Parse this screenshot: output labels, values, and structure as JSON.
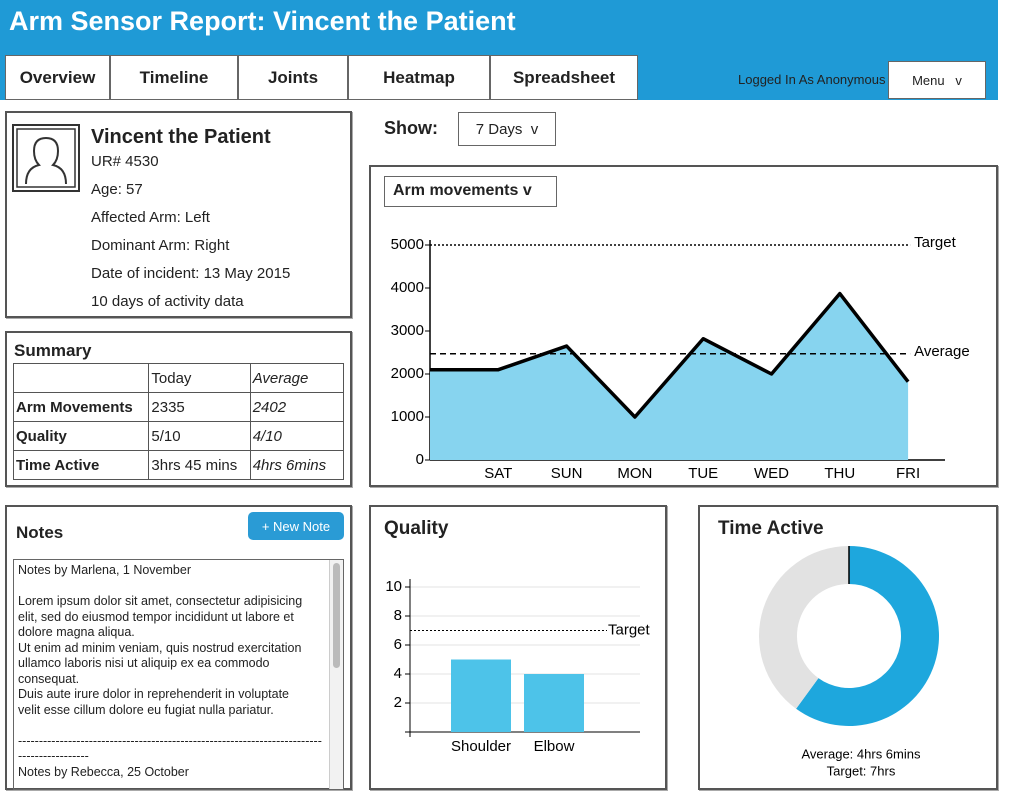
{
  "header": {
    "title": "Arm Sensor Report: Vincent the Patient"
  },
  "nav": {
    "tabs": [
      "Overview",
      "Timeline",
      "Joints",
      "Heatmap",
      "Spreadsheet"
    ],
    "login": "Logged In As Anonymous",
    "menu": "Menu   v"
  },
  "patient": {
    "name": "Vincent the Patient",
    "details": [
      "UR# 4530",
      "Age: 57",
      "Affected Arm: Left",
      "Dominant Arm: Right",
      "Date of incident: 13 May 2015",
      "10 days of activity data"
    ]
  },
  "summary": {
    "title": "Summary",
    "columns": [
      "Today",
      "Average"
    ],
    "rows": [
      [
        "Arm Movements",
        "2335",
        "2402"
      ],
      [
        "Quality",
        "5/10",
        "4/10"
      ],
      [
        "Time Active",
        "3hrs 45 mins",
        "4hrs 6mins"
      ]
    ]
  },
  "show": {
    "label": "Show:",
    "select": "7 Days  v"
  },
  "notes": {
    "title": "Notes",
    "button": "+ New Note",
    "entries": [
      {
        "author": "Notes by Marlena, 1 November",
        "lines": [
          "Lorem ipsum dolor sit amet, consectetur adipisicing",
          "elit, sed do eiusmod tempor incididunt ut labore et",
          "dolore magna aliqua.",
          "Ut enim ad minim veniam, quis nostrud exercitation",
          "ullamco laboris nisi ut aliquip ex ea commodo",
          "consequat.",
          "Duis aute irure dolor in reprehenderit in voluptate",
          "velit esse cillum dolore eu fugiat nulla pariatur."
        ]
      },
      {
        "author": "Notes by Rebecca, 25 October"
      }
    ],
    "separator": "------------------------------------------------------------------------------------------"
  },
  "chart_data": [
    {
      "type": "area",
      "title": "Arm movements v",
      "categories": [
        null,
        "SAT",
        "SUN",
        "MON",
        "TUE",
        "WED",
        "THU",
        "FRI"
      ],
      "values": [
        2100,
        2100,
        2650,
        1000,
        2820,
        2000,
        3870,
        1820
      ],
      "color": "#000000",
      "fill": "#87d4ef",
      "ylim": [
        0,
        5000
      ],
      "yticks": [
        0,
        1000,
        2000,
        3000,
        4000,
        5000
      ],
      "reference_lines": [
        {
          "label": "Target",
          "value": 5000,
          "style": "dotted"
        },
        {
          "label": "Average",
          "value": 2470,
          "style": "dashed"
        }
      ]
    },
    {
      "type": "bar",
      "title": "Quality",
      "categories": [
        "Shoulder",
        "Elbow"
      ],
      "values": [
        5,
        4
      ],
      "color": "#4dc3e9",
      "ylim": [
        0,
        10
      ],
      "yticks": [
        2,
        4,
        6,
        8,
        10
      ],
      "grid": true,
      "reference_lines": [
        {
          "label": "Target",
          "value": 7,
          "style": "dotted"
        }
      ]
    },
    {
      "type": "donut",
      "title": "Time Active",
      "values": [
        60,
        40
      ],
      "colors": [
        "#1ea7dd",
        "#e2e2e2"
      ],
      "notes": [
        "Average: 4hrs 6mins",
        "Target: 7hrs"
      ]
    }
  ]
}
